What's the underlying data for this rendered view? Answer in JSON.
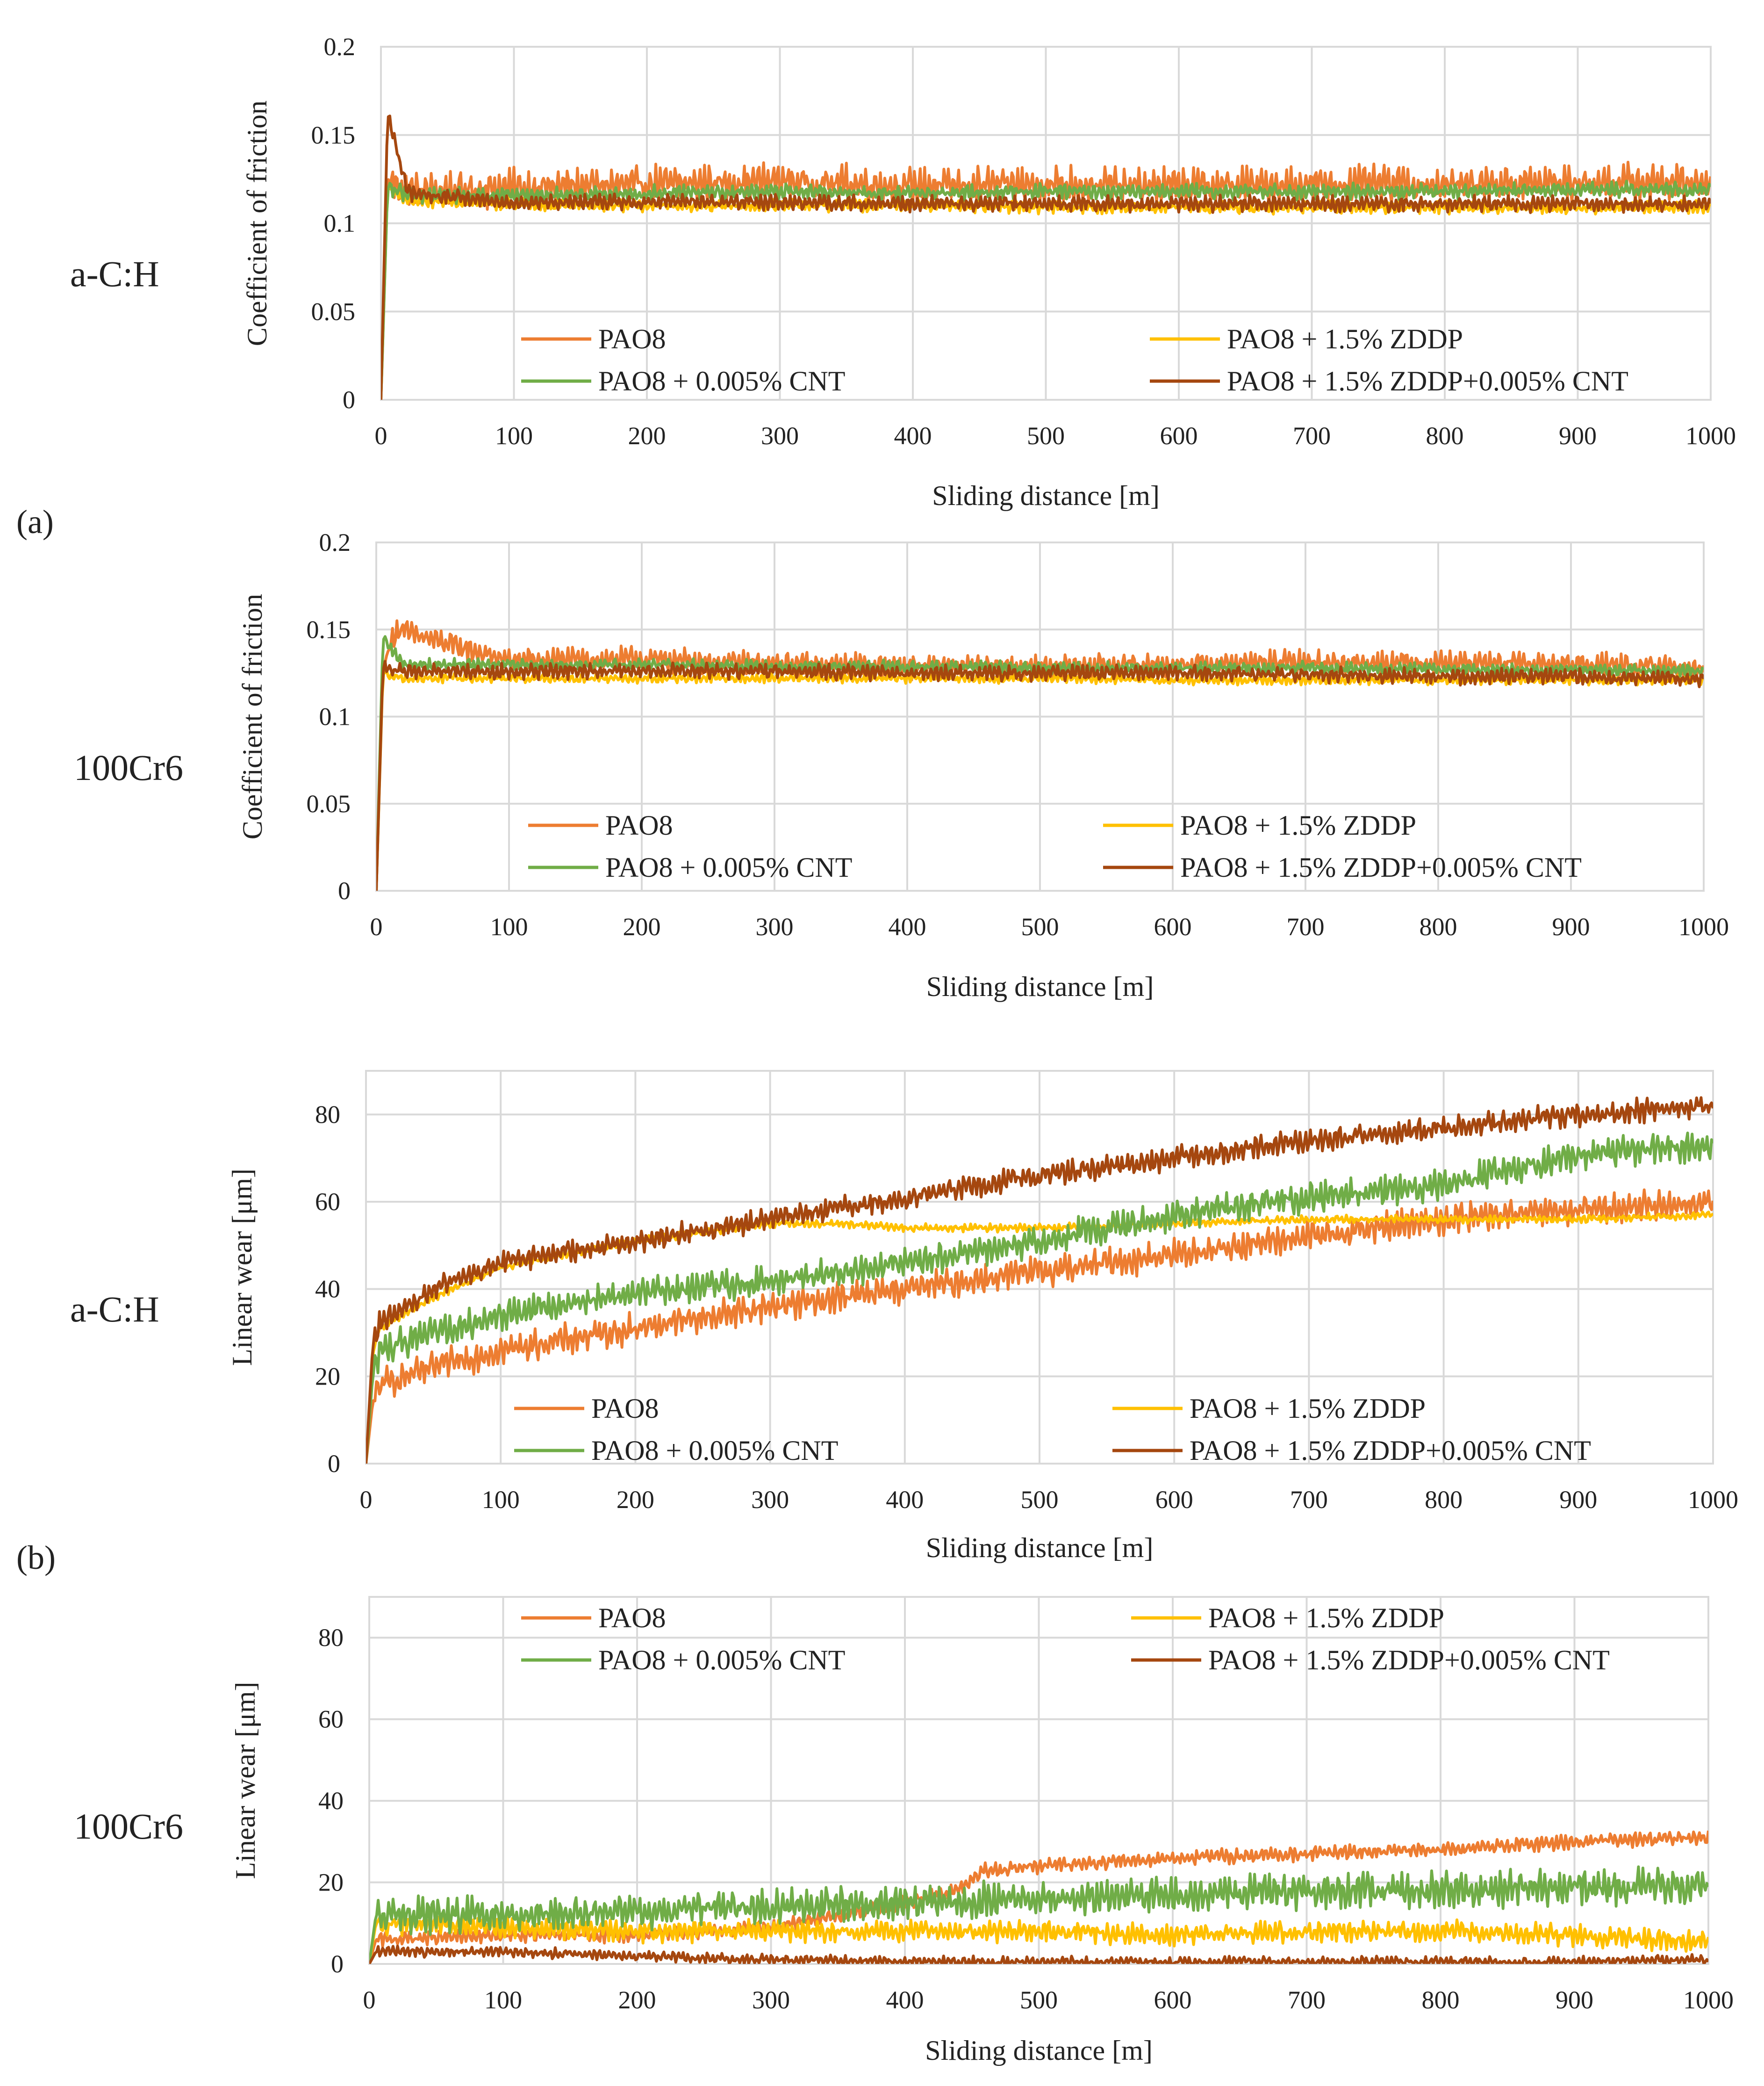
{
  "figure": {
    "panel_labels": [
      "(a)",
      "(b)"
    ],
    "series_colors": {
      "PAO8": "#ED7D31",
      "PAO8 + 0.005% CNT": "#70AD47",
      "PAO8 + 1.5% ZDDP": "#FFC000",
      "PAO8 + 1.5% ZDDP+0.005% CNT": "#A5470F"
    },
    "grid_color": "#D9D9D9"
  },
  "chart_data": [
    {
      "id": "friction-acH",
      "type": "line",
      "side_label": "a-C:H",
      "title": "",
      "xlabel": "Sliding distance [m]",
      "ylabel": "Coefficient of friction",
      "xlim": [
        0,
        1000
      ],
      "ylim": [
        0,
        0.2
      ],
      "xticks": [
        0,
        100,
        200,
        300,
        400,
        500,
        600,
        700,
        800,
        900,
        1000
      ],
      "yticks": [
        0,
        0.05,
        0.1,
        0.15,
        0.2
      ],
      "ytick_labels": [
        "0",
        "0.05",
        "0.1",
        "0.15",
        "0.2"
      ],
      "legend": [
        "PAO8",
        "PAO8 + 1.5% ZDDP",
        "PAO8 + 0.005% CNT",
        "PAO8 + 1.5% ZDDP+0.005% CNT"
      ],
      "legend_position": "bottom",
      "series": [
        {
          "name": "PAO8",
          "color": "#ED7D31",
          "x": [
            0,
            5,
            20,
            100,
            200,
            300,
            400,
            500,
            600,
            700,
            800,
            900,
            1000
          ],
          "y": [
            0,
            0.125,
            0.118,
            0.12,
            0.122,
            0.124,
            0.121,
            0.122,
            0.121,
            0.122,
            0.122,
            0.123,
            0.123
          ],
          "noise": 0.012
        },
        {
          "name": "PAO8 + 1.5% ZDDP",
          "color": "#FFC000",
          "x": [
            0,
            5,
            20,
            100,
            200,
            300,
            400,
            500,
            600,
            700,
            800,
            900,
            1000
          ],
          "y": [
            0,
            0.12,
            0.113,
            0.111,
            0.11,
            0.11,
            0.11,
            0.109,
            0.109,
            0.109,
            0.109,
            0.109,
            0.109
          ],
          "noise": 0.004
        },
        {
          "name": "PAO8 + 0.005% CNT",
          "color": "#70AD47",
          "x": [
            0,
            5,
            20,
            100,
            200,
            300,
            400,
            500,
            600,
            700,
            800,
            900,
            1000
          ],
          "y": [
            0,
            0.12,
            0.116,
            0.116,
            0.117,
            0.118,
            0.117,
            0.118,
            0.118,
            0.118,
            0.118,
            0.119,
            0.119
          ],
          "noise": 0.005
        },
        {
          "name": "PAO8 + 1.5% ZDDP+0.005% CNT",
          "color": "#A5470F",
          "x": [
            0,
            5,
            20,
            100,
            200,
            300,
            400,
            500,
            600,
            700,
            800,
            900,
            1000
          ],
          "y": [
            0,
            0.162,
            0.117,
            0.112,
            0.112,
            0.112,
            0.111,
            0.111,
            0.111,
            0.111,
            0.111,
            0.111,
            0.111
          ],
          "noise": 0.005
        }
      ]
    },
    {
      "id": "friction-100Cr6",
      "type": "line",
      "side_label": "100Cr6",
      "title": "",
      "xlabel": "Sliding distance [m]",
      "ylabel": "Coefficient of friction",
      "xlim": [
        0,
        1000
      ],
      "ylim": [
        0,
        0.2
      ],
      "xticks": [
        0,
        100,
        200,
        300,
        400,
        500,
        600,
        700,
        800,
        900,
        1000
      ],
      "yticks": [
        0,
        0.05,
        0.1,
        0.15,
        0.2
      ],
      "ytick_labels": [
        "0",
        "0.05",
        "0.1",
        "0.15",
        "0.2"
      ],
      "legend": [
        "PAO8",
        "PAO8 + 1.5% ZDDP",
        "PAO8 + 0.005% CNT",
        "PAO8 + 1.5% ZDDP+0.005% CNT"
      ],
      "legend_position": "bottom",
      "series": [
        {
          "name": "PAO8",
          "color": "#ED7D31",
          "x": [
            0,
            5,
            15,
            100,
            200,
            300,
            400,
            500,
            600,
            700,
            800,
            900,
            1000
          ],
          "y": [
            0,
            0.13,
            0.15,
            0.132,
            0.133,
            0.13,
            0.129,
            0.128,
            0.13,
            0.131,
            0.131,
            0.13,
            0.128
          ],
          "noise": 0.008
        },
        {
          "name": "PAO8 + 1.5% ZDDP",
          "color": "#FFC000",
          "x": [
            0,
            5,
            20,
            100,
            200,
            300,
            400,
            500,
            600,
            700,
            800,
            900,
            1000
          ],
          "y": [
            0,
            0.125,
            0.122,
            0.122,
            0.122,
            0.122,
            0.122,
            0.122,
            0.121,
            0.121,
            0.121,
            0.121,
            0.121
          ],
          "noise": 0.003
        },
        {
          "name": "PAO8 + 0.005% CNT",
          "color": "#70AD47",
          "x": [
            0,
            5,
            20,
            100,
            200,
            300,
            400,
            500,
            600,
            700,
            800,
            900,
            1000
          ],
          "y": [
            0,
            0.145,
            0.13,
            0.13,
            0.13,
            0.129,
            0.129,
            0.128,
            0.128,
            0.128,
            0.127,
            0.127,
            0.126
          ],
          "noise": 0.004
        },
        {
          "name": "PAO8 + 1.5% ZDDP+0.005% CNT",
          "color": "#A5470F",
          "x": [
            0,
            5,
            20,
            100,
            200,
            300,
            400,
            500,
            600,
            700,
            800,
            900,
            1000
          ],
          "y": [
            0,
            0.128,
            0.126,
            0.126,
            0.126,
            0.126,
            0.125,
            0.125,
            0.125,
            0.124,
            0.123,
            0.123,
            0.122
          ],
          "noise": 0.005
        }
      ]
    },
    {
      "id": "wear-acH",
      "type": "line",
      "side_label": "a-C:H",
      "title": "",
      "xlabel": "Sliding distance [m]",
      "ylabel": "Linear wear [μm]",
      "xlim": [
        0,
        1000
      ],
      "ylim": [
        0,
        90
      ],
      "xticks": [
        0,
        100,
        200,
        300,
        400,
        500,
        600,
        700,
        800,
        900,
        1000
      ],
      "yticks": [
        0,
        20,
        40,
        60,
        80
      ],
      "ytick_labels": [
        "0",
        "20",
        "40",
        "60",
        "80"
      ],
      "legend": [
        "PAO8",
        "PAO8 + 1.5% ZDDP",
        "PAO8 + 0.005% CNT",
        "PAO8 + 1.5% ZDDP+0.005% CNT"
      ],
      "legend_position": "bottom",
      "series": [
        {
          "name": "PAO8",
          "color": "#ED7D31",
          "x": [
            0,
            5,
            10,
            50,
            100,
            200,
            300,
            400,
            500,
            600,
            700,
            800,
            900,
            1000
          ],
          "y": [
            0,
            14,
            18,
            22,
            26,
            31,
            36,
            40,
            44,
            48,
            52,
            56,
            58,
            60
          ],
          "noise": 4
        },
        {
          "name": "PAO8 + 1.5% ZDDP",
          "color": "#FFC000",
          "x": [
            0,
            5,
            10,
            50,
            100,
            200,
            300,
            350,
            400,
            500,
            600,
            700,
            800,
            900,
            1000
          ],
          "y": [
            0,
            25,
            31,
            38,
            45,
            51,
            55,
            55,
            54,
            54,
            55,
            56,
            56,
            56,
            57
          ],
          "noise": 1
        },
        {
          "name": "PAO8 + 0.005% CNT",
          "color": "#70AD47",
          "x": [
            0,
            5,
            10,
            50,
            100,
            200,
            300,
            400,
            500,
            600,
            700,
            800,
            830,
            900,
            1000
          ],
          "y": [
            0,
            20,
            26,
            30,
            34,
            39,
            42,
            46,
            51,
            57,
            61,
            64,
            66,
            71,
            73
          ],
          "noise": 4
        },
        {
          "name": "PAO8 + 1.5% ZDDP+0.005% CNT",
          "color": "#A5470F",
          "x": [
            0,
            5,
            10,
            50,
            100,
            200,
            300,
            400,
            500,
            600,
            700,
            800,
            900,
            1000
          ],
          "y": [
            0,
            27,
            32,
            40,
            46,
            51,
            56,
            61,
            66,
            70,
            74,
            77,
            80,
            82
          ],
          "noise": 3
        }
      ]
    },
    {
      "id": "wear-100Cr6",
      "type": "line",
      "side_label": "100Cr6",
      "title": "",
      "xlabel": "Sliding distance [m]",
      "ylabel": "Linear wear [μm]",
      "xlim": [
        0,
        1000
      ],
      "ylim": [
        0,
        90
      ],
      "xticks": [
        0,
        100,
        200,
        300,
        400,
        500,
        600,
        700,
        800,
        900,
        1000
      ],
      "yticks": [
        0,
        20,
        40,
        60,
        80
      ],
      "ytick_labels": [
        "0",
        "20",
        "40",
        "60",
        "80"
      ],
      "legend": [
        "PAO8",
        "PAO8 + 1.5% ZDDP",
        "PAO8 + 0.005% CNT",
        "PAO8 + 1.5% ZDDP+0.005% CNT"
      ],
      "legend_position": "top",
      "series": [
        {
          "name": "PAO8",
          "color": "#ED7D31",
          "x": [
            0,
            5,
            100,
            200,
            300,
            400,
            440,
            460,
            500,
            600,
            700,
            800,
            900,
            1000
          ],
          "y": [
            0,
            6,
            7,
            7,
            9,
            15,
            18,
            23,
            24,
            26,
            27,
            28,
            30,
            31
          ],
          "noise": 2
        },
        {
          "name": "PAO8 + 1.5% ZDDP",
          "color": "#FFC000",
          "x": [
            0,
            5,
            100,
            200,
            300,
            400,
            500,
            600,
            700,
            800,
            900,
            950,
            1000
          ],
          "y": [
            0,
            10,
            9,
            8,
            8,
            8,
            8,
            7,
            8,
            8,
            7,
            6,
            6
          ],
          "noise": 3
        },
        {
          "name": "PAO8 + 0.005% CNT",
          "color": "#70AD47",
          "x": [
            0,
            5,
            100,
            200,
            300,
            400,
            500,
            600,
            700,
            800,
            900,
            1000
          ],
          "y": [
            0,
            12,
            12,
            13,
            14,
            15,
            16,
            17,
            18,
            18,
            19,
            19
          ],
          "noise": 5
        },
        {
          "name": "PAO8 + 1.5% ZDDP+0.005% CNT",
          "color": "#A5470F",
          "x": [
            0,
            5,
            100,
            200,
            300,
            400,
            500,
            600,
            700,
            800,
            900,
            1000
          ],
          "y": [
            0,
            3,
            3,
            2,
            1,
            0.5,
            0.5,
            0.5,
            0.5,
            0.5,
            0.5,
            1
          ],
          "noise": 1.5
        }
      ]
    }
  ]
}
